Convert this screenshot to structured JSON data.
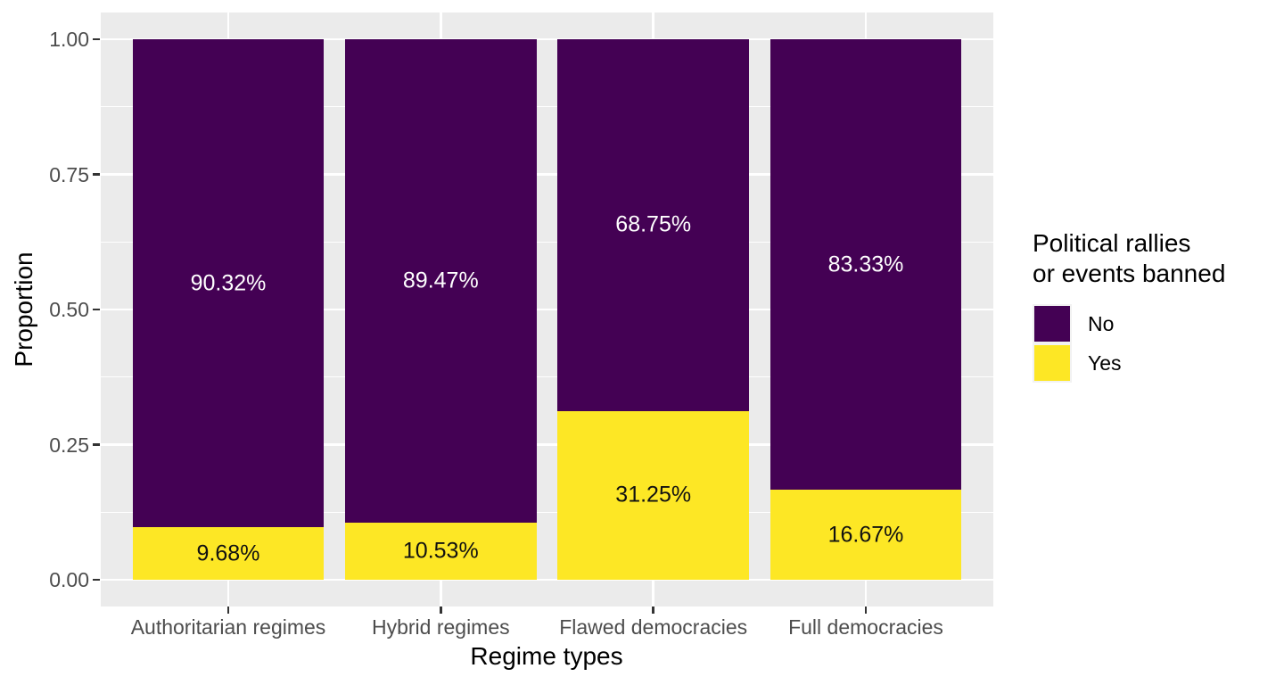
{
  "chart_data": {
    "type": "bar",
    "subtype": "stacked-proportion",
    "title": "",
    "xlabel": "Regime types",
    "ylabel": "Proportion",
    "categories": [
      "Authoritarian regimes",
      "Hybrid regimes",
      "Flawed democracies",
      "Full democracies"
    ],
    "series": [
      {
        "name": "No",
        "color": "#440154",
        "label_color": "#ffffff",
        "values": [
          0.9032,
          0.8947,
          0.6875,
          0.8333
        ],
        "labels": [
          "90.32%",
          "89.47%",
          "68.75%",
          "83.33%"
        ]
      },
      {
        "name": "Yes",
        "color": "#FDE725",
        "label_color": "#111111",
        "values": [
          0.0968,
          0.1053,
          0.3125,
          0.1667
        ],
        "labels": [
          "9.68%",
          "10.53%",
          "31.25%",
          "16.67%"
        ]
      }
    ],
    "ylim": [
      0,
      1
    ],
    "yticks": [
      {
        "value": 0.0,
        "label": "0.00"
      },
      {
        "value": 0.25,
        "label": "0.25"
      },
      {
        "value": 0.5,
        "label": "0.50"
      },
      {
        "value": 0.75,
        "label": "0.75"
      },
      {
        "value": 1.0,
        "label": "1.00"
      }
    ],
    "y_minor_ticks": [
      0.125,
      0.375,
      0.625,
      0.875
    ],
    "grid": "white-on-grey",
    "legend": {
      "position": "right",
      "title": "Political rallies\nor events banned",
      "entries": [
        {
          "label": "No",
          "color": "#440154"
        },
        {
          "label": "Yes",
          "color": "#FDE725"
        }
      ]
    }
  },
  "style": {
    "panel_bg": "#EBEBEB",
    "grid_color": "#FFFFFF",
    "tick_color": "#333333",
    "tick_label_color": "#4D4D4D",
    "page_bg": "#FFFFFF"
  }
}
